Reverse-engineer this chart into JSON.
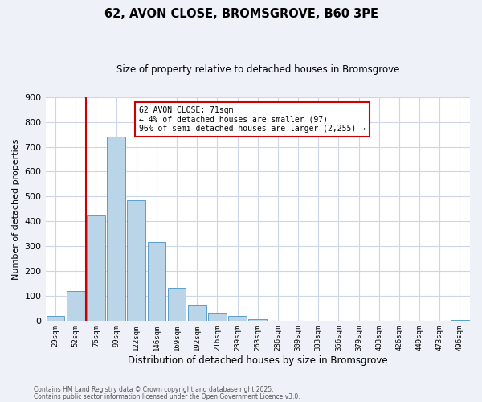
{
  "title": "62, AVON CLOSE, BROMSGROVE, B60 3PE",
  "subtitle": "Size of property relative to detached houses in Bromsgrove",
  "xlabel": "Distribution of detached houses by size in Bromsgrove",
  "ylabel": "Number of detached properties",
  "bin_labels": [
    "29sqm",
    "52sqm",
    "76sqm",
    "99sqm",
    "122sqm",
    "146sqm",
    "169sqm",
    "192sqm",
    "216sqm",
    "239sqm",
    "263sqm",
    "286sqm",
    "309sqm",
    "333sqm",
    "356sqm",
    "379sqm",
    "403sqm",
    "426sqm",
    "449sqm",
    "473sqm",
    "496sqm"
  ],
  "bar_values": [
    22,
    122,
    425,
    740,
    485,
    318,
    133,
    65,
    32,
    22,
    8,
    1,
    0,
    0,
    0,
    0,
    0,
    0,
    0,
    0,
    5
  ],
  "bar_color": "#bad4e8",
  "bar_edge_color": "#5a9ec9",
  "vline_color": "#cc0000",
  "annotation_title": "62 AVON CLOSE: 71sqm",
  "annotation_line1": "← 4% of detached houses are smaller (97)",
  "annotation_line2": "96% of semi-detached houses are larger (2,255) →",
  "annotation_box_color": "#ffffff",
  "annotation_box_edge": "#cc0000",
  "ylim": [
    0,
    900
  ],
  "yticks": [
    0,
    100,
    200,
    300,
    400,
    500,
    600,
    700,
    800,
    900
  ],
  "footer1": "Contains HM Land Registry data © Crown copyright and database right 2025.",
  "footer2": "Contains public sector information licensed under the Open Government Licence v3.0.",
  "bg_color": "#eef2f8",
  "plot_bg_color": "#ffffff",
  "grid_color": "#ccd6e8"
}
